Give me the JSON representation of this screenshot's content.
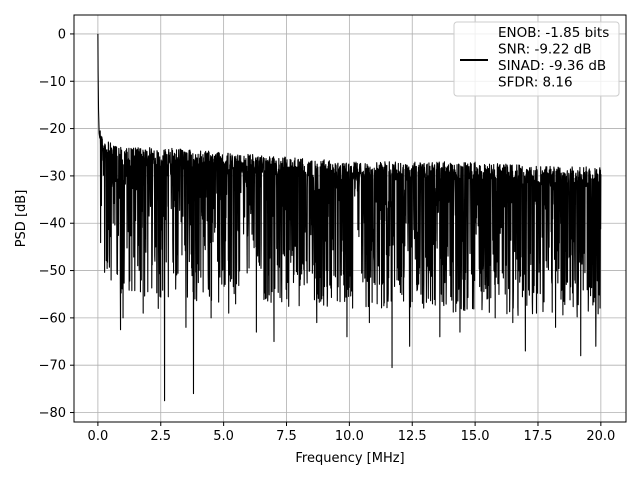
{
  "chart_data": {
    "type": "line",
    "title": "",
    "xlabel": "Frequency [MHz]",
    "ylabel": "PSD [dB]",
    "xlim": [
      -0.95,
      21.0
    ],
    "ylim": [
      -82,
      4
    ],
    "xticks": [
      0.0,
      2.5,
      5.0,
      7.5,
      10.0,
      12.5,
      15.0,
      17.5,
      20.0
    ],
    "xtick_labels": [
      "0.0",
      "2.5",
      "5.0",
      "7.5",
      "10.0",
      "12.5",
      "15.0",
      "17.5",
      "20.0"
    ],
    "yticks": [
      0,
      -10,
      -20,
      -30,
      -40,
      -50,
      -60,
      -70,
      -80
    ],
    "ytick_labels": [
      "0",
      "−10",
      "−20",
      "−30",
      "−40",
      "−50",
      "−60",
      "−70",
      "−80"
    ],
    "grid": true,
    "legend_placement": "top-right",
    "legend_lines": [
      "ENOB: -1.85 bits",
      "SNR: -9.22 dB",
      "SINAD: -9.36 dB",
      "SFDR: 8.16"
    ],
    "line_color": "#000000",
    "series": [
      {
        "color": "#000000",
        "envelope": {
          "x": [
            0.0,
            0.02,
            0.05,
            0.1,
            0.2,
            0.5,
            1.0,
            2.5,
            5.0,
            7.5,
            10.0,
            12.5,
            15.0,
            17.5,
            20.0
          ],
          "upper": [
            0,
            -12,
            -18,
            -20,
            -22,
            -23,
            -24,
            -24,
            -25,
            -26,
            -27,
            -27,
            -27,
            -28,
            -28
          ],
          "lower": [
            -40,
            -44,
            -46,
            -47,
            -48,
            -49,
            -50,
            -51,
            -52,
            -53,
            -53,
            -54,
            -54,
            -55,
            -55
          ]
        },
        "deep_dips": [
          {
            "x": 0.9,
            "y": -62.5
          },
          {
            "x": 1.0,
            "y": -60.0
          },
          {
            "x": 1.8,
            "y": -59.0
          },
          {
            "x": 2.4,
            "y": -58.0
          },
          {
            "x": 2.65,
            "y": -77.5
          },
          {
            "x": 3.5,
            "y": -62.0
          },
          {
            "x": 3.8,
            "y": -76.0
          },
          {
            "x": 4.5,
            "y": -60.0
          },
          {
            "x": 5.2,
            "y": -59.0
          },
          {
            "x": 6.3,
            "y": -63.0
          },
          {
            "x": 7.0,
            "y": -65.0
          },
          {
            "x": 8.7,
            "y": -61.0
          },
          {
            "x": 9.9,
            "y": -64.0
          },
          {
            "x": 10.8,
            "y": -61.0
          },
          {
            "x": 11.7,
            "y": -70.5
          },
          {
            "x": 12.4,
            "y": -66.0
          },
          {
            "x": 13.6,
            "y": -64.0
          },
          {
            "x": 14.4,
            "y": -63.0
          },
          {
            "x": 15.8,
            "y": -60.0
          },
          {
            "x": 16.5,
            "y": -61.0
          },
          {
            "x": 17.0,
            "y": -67.0
          },
          {
            "x": 18.2,
            "y": -62.0
          },
          {
            "x": 19.2,
            "y": -68.0
          },
          {
            "x": 19.8,
            "y": -66.0
          }
        ]
      }
    ]
  }
}
